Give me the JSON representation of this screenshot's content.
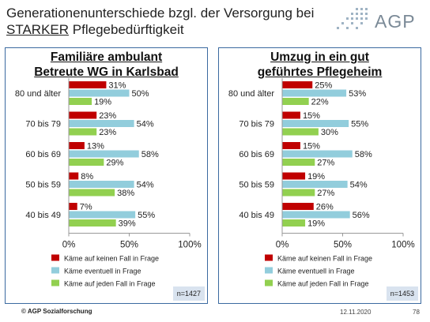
{
  "header": {
    "title_line1": "Generationenunterschiede bzgl. der Versorgung bei",
    "title_line2_underlined": "STARKER",
    "title_line2_rest": " Pflegebedürftigkeit",
    "logo_text": "AGP"
  },
  "footer": {
    "org": "© AGP Sozialforschung",
    "date": "12.11.2020",
    "page": "78"
  },
  "colors": {
    "no": "#c00000",
    "maybe": "#92cddc",
    "yes": "#92d050",
    "panel_border": "#3b6aa0"
  },
  "legend": [
    "Käme auf keinen Fall in Frage",
    "Käme eventuell in Frage",
    "Käme auf jeden Fall in Frage"
  ],
  "chart_data": [
    {
      "type": "bar",
      "orientation": "horizontal",
      "title_line1": "Familiäre ambulant",
      "title_line2": "Betreute WG in Karlsbad",
      "categories": [
        "80 und älter",
        "70 bis 79",
        "60 bis 69",
        "50 bis 59",
        "40 bis 49"
      ],
      "series": [
        {
          "name": "Käme auf keinen Fall in Frage",
          "values": [
            31,
            23,
            13,
            8,
            7
          ]
        },
        {
          "name": "Käme eventuell in Frage",
          "values": [
            50,
            54,
            58,
            54,
            55
          ]
        },
        {
          "name": "Käme auf jeden Fall in Frage",
          "values": [
            19,
            23,
            29,
            38,
            39
          ]
        }
      ],
      "xlim": [
        0,
        100
      ],
      "xticks": [
        "0%",
        "50%",
        "100%"
      ],
      "legend_position": "bottom",
      "n": "n=1427"
    },
    {
      "type": "bar",
      "orientation": "horizontal",
      "title_line1": "Umzug in ein gut",
      "title_line2": "geführtes Pflegeheim",
      "categories": [
        "80 und älter",
        "70 bis 79",
        "60 bis 69",
        "50 bis 59",
        "40 bis 49"
      ],
      "series": [
        {
          "name": "Käme auf keinen Fall in Frage",
          "values": [
            25,
            15,
            15,
            19,
            26
          ]
        },
        {
          "name": "Käme eventuell in Frage",
          "values": [
            53,
            55,
            58,
            54,
            56
          ]
        },
        {
          "name": "Käme auf jeden Fall in Frage",
          "values": [
            22,
            30,
            27,
            27,
            19
          ]
        }
      ],
      "xlim": [
        0,
        100
      ],
      "xticks": [
        "0%",
        "50%",
        "100%"
      ],
      "legend_position": "bottom",
      "n": "n=1453"
    }
  ]
}
